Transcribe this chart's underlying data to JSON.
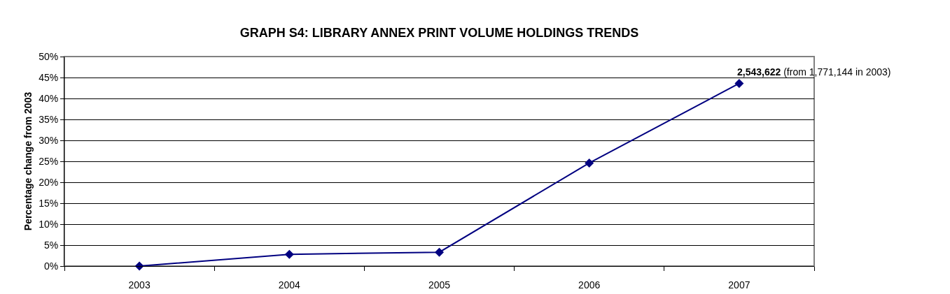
{
  "chart_data": {
    "type": "line",
    "title": "GRAPH S4: LIBRARY ANNEX PRINT VOLUME HOLDINGS TRENDS",
    "ylabel": "Percentage change from 2003",
    "categories": [
      "2003",
      "2004",
      "2005",
      "2006",
      "2007"
    ],
    "series": [
      {
        "color": "#000080",
        "values": [
          0,
          2.8,
          3.3,
          24.6,
          43.6
        ]
      }
    ],
    "ylim": [
      0,
      50
    ],
    "yticks": [
      {
        "value": 0,
        "label": "0%"
      },
      {
        "value": 5,
        "label": "5%"
      },
      {
        "value": 10,
        "label": "10%"
      },
      {
        "value": 15,
        "label": "15%"
      },
      {
        "value": 20,
        "label": "20%"
      },
      {
        "value": 25,
        "label": "25%"
      },
      {
        "value": 30,
        "label": "30%"
      },
      {
        "value": 35,
        "label": "35%"
      },
      {
        "value": 40,
        "label": "40%"
      },
      {
        "value": 45,
        "label": "45%"
      },
      {
        "value": 50,
        "label": "50%"
      }
    ],
    "annotations": [
      {
        "text": "2,543,622 (from 1,771,144 in 2003)",
        "x": "2007",
        "y": 43.6
      }
    ],
    "grid": "y",
    "marker": "diamond",
    "line_style": "solid"
  }
}
